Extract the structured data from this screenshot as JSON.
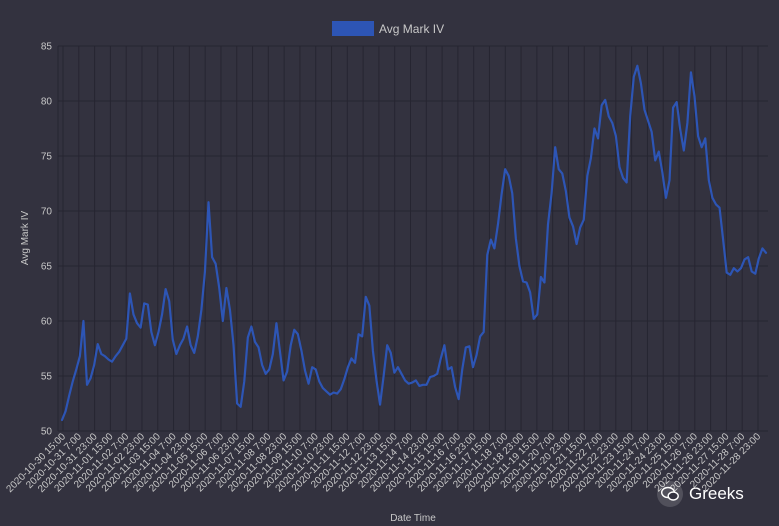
{
  "chart_data": {
    "type": "line",
    "legend": {
      "label": "Avg Mark IV",
      "position": "top"
    },
    "xlabel": "Date Time",
    "ylabel": "Avg Mark IV",
    "ylim": [
      50,
      85
    ],
    "yticks": [
      50,
      55,
      60,
      65,
      70,
      75,
      80,
      85
    ],
    "grid": true,
    "colors": {
      "line": "#2d55b5",
      "background": "#33323f",
      "grid": "#262531",
      "text": "#c8c8c8"
    },
    "x_tick_labels": [
      "2020-10-30 15:00",
      "2020-10-31 7:00",
      "2020-10-31 23:00",
      "2020-11-01 15:00",
      "2020-11-02 7:00",
      "2020-11-02 23:00",
      "2020-11-03 15:00",
      "2020-11-04 7:00",
      "2020-11-04 23:00",
      "2020-11-05 15:00",
      "2020-11-06 7:00",
      "2020-11-06 23:00",
      "2020-11-07 15:00",
      "2020-11-08 7:00",
      "2020-11-08 23:00",
      "2020-11-09 15:00",
      "2020-11-10 7:00",
      "2020-11-10 23:00",
      "2020-11-11 15:00",
      "2020-11-12 7:00",
      "2020-11-12 23:00",
      "2020-11-13 15:00",
      "2020-11-14 7:00",
      "2020-11-14 23:00",
      "2020-11-15 15:00",
      "2020-11-16 7:00",
      "2020-11-16 23:00",
      "2020-11-17 15:00",
      "2020-11-18 7:00",
      "2020-11-18 23:00",
      "2020-11-19 15:00",
      "2020-11-20 7:00",
      "2020-11-20 23:00",
      "2020-11-21 15:00",
      "2020-11-22 7:00",
      "2020-11-22 23:00",
      "2020-11-23 15:00",
      "2020-11-24 7:00",
      "2020-11-24 23:00",
      "2020-11-25 15:00",
      "2020-11-26 7:00",
      "2020-11-26 23:00",
      "2020-11-27 15:00",
      "2020-11-28 7:00",
      "2020-11-28 23:00"
    ],
    "series": [
      {
        "name": "Avg Mark IV",
        "x_start": "2020-10-30 15:00",
        "step_hours": 4,
        "values": [
          51.0,
          51.8,
          53.2,
          54.5,
          55.6,
          56.8,
          60.0,
          54.2,
          54.8,
          56.0,
          57.9,
          57.0,
          56.8,
          56.5,
          56.3,
          56.8,
          57.2,
          57.8,
          58.4,
          62.5,
          60.6,
          59.8,
          59.4,
          61.6,
          61.5,
          59.0,
          57.8,
          59.0,
          60.6,
          62.9,
          61.8,
          58.3,
          57.0,
          57.8,
          58.4,
          59.5,
          57.8,
          57.1,
          58.6,
          61.0,
          64.5,
          70.8,
          65.8,
          65.2,
          63.0,
          60.0,
          63.0,
          61.0,
          57.8,
          52.5,
          52.2,
          54.5,
          58.5,
          59.5,
          58.1,
          57.6,
          56.0,
          55.2,
          55.6,
          57.0,
          59.8,
          57.2,
          54.6,
          55.4,
          57.8,
          59.2,
          58.8,
          57.3,
          55.5,
          54.3,
          55.8,
          55.6,
          54.5,
          53.9,
          53.6,
          53.3,
          53.5,
          53.4,
          53.8,
          54.7,
          55.8,
          56.6,
          56.2,
          58.8,
          58.6,
          62.2,
          61.4,
          57.3,
          54.6,
          52.4,
          55.0,
          57.8,
          57.1,
          55.3,
          55.8,
          55.2,
          54.6,
          54.3,
          54.4,
          54.6,
          54.1,
          54.2,
          54.2,
          54.9,
          55.0,
          55.2,
          56.6,
          57.8,
          55.6,
          55.8,
          54.0,
          52.9,
          55.6,
          57.6,
          57.7,
          55.8,
          56.9,
          58.6,
          59.0,
          66.0,
          67.4,
          66.6,
          68.8,
          71.5,
          73.8,
          73.2,
          71.6,
          67.5,
          65.0,
          63.6,
          63.5,
          62.6,
          60.2,
          60.6,
          64.0,
          63.5,
          68.8,
          71.6,
          75.8,
          73.8,
          73.4,
          71.8,
          69.4,
          68.6,
          67.0,
          68.5,
          69.2,
          73.2,
          74.8,
          77.5,
          76.6,
          79.6,
          80.1,
          78.6,
          78.0,
          76.8,
          74.0,
          73.0,
          72.6,
          78.6,
          82.2,
          83.2,
          81.6,
          79.2,
          78.2,
          77.2,
          74.6,
          75.4,
          73.5,
          71.2,
          72.8,
          79.4,
          79.9,
          77.4,
          75.5,
          78.0,
          82.6,
          80.4,
          76.8,
          75.8,
          76.6,
          72.8,
          71.2,
          70.6,
          70.3,
          67.4,
          64.4,
          64.2,
          64.8,
          64.5,
          64.8,
          65.6,
          65.8,
          64.5,
          64.3,
          65.7,
          66.6,
          66.2
        ]
      }
    ]
  },
  "watermark": {
    "text": "Greeks",
    "icon": "wechat-icon"
  }
}
